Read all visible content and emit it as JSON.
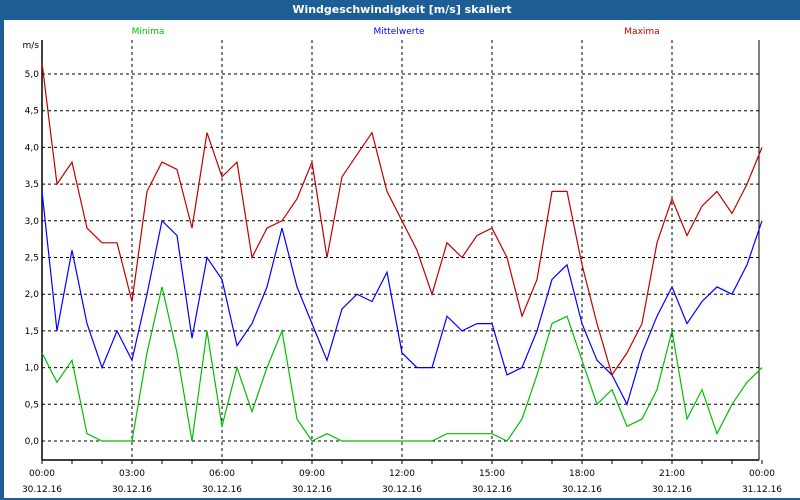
{
  "window": {
    "title": "Windgeschwindigkeit [m/s] skaliert"
  },
  "colors": {
    "minima": "#00c000",
    "mittelwerte": "#0000ff",
    "maxima": "#c00000",
    "titlebar": "#1e5e96"
  },
  "chart_data": {
    "type": "line",
    "title": "Windgeschwindigkeit [m/s] skaliert",
    "ylabel": "m/s",
    "xlabel": "",
    "ylim": [
      -0.25,
      5.45
    ],
    "xlim_hours": [
      0,
      24
    ],
    "grid": true,
    "legend_placement": "top",
    "y_ticks": [
      "0,0",
      "0,5",
      "1,0",
      "1,5",
      "2,0",
      "2,5",
      "3,0",
      "3,5",
      "4,0",
      "4,5",
      "5,0"
    ],
    "x_ticks": [
      {
        "time": "00:00",
        "date": "30.12.16"
      },
      {
        "time": "03:00",
        "date": "30.12.16"
      },
      {
        "time": "06:00",
        "date": "30.12.16"
      },
      {
        "time": "09:00",
        "date": "30.12.16"
      },
      {
        "time": "12:00",
        "date": "30.12.16"
      },
      {
        "time": "15:00",
        "date": "30.12.16"
      },
      {
        "time": "18:00",
        "date": "30.12.16"
      },
      {
        "time": "21:00",
        "date": "30.12.16"
      },
      {
        "time": "00:00",
        "date": "31.12.16"
      }
    ],
    "x_hours_step": 0.5,
    "series": [
      {
        "name": "Minima",
        "values": [
          1.2,
          0.8,
          1.1,
          0.1,
          0.0,
          0.0,
          0.0,
          1.2,
          2.1,
          1.2,
          0.0,
          1.5,
          0.2,
          1.0,
          0.4,
          1.0,
          1.5,
          0.3,
          0.0,
          0.1,
          0.0,
          0.0,
          0.0,
          0.0,
          0.0,
          0.0,
          0.0,
          0.1,
          0.1,
          0.1,
          0.1,
          0.0,
          0.3,
          0.9,
          1.6,
          1.7,
          1.1,
          0.5,
          0.7,
          0.2,
          0.3,
          0.7,
          1.5,
          0.3,
          0.7,
          0.1,
          0.5,
          0.8,
          1.0
        ]
      },
      {
        "name": "Mittelwerte",
        "values": [
          3.4,
          1.5,
          2.6,
          1.6,
          1.0,
          1.5,
          1.1,
          2.0,
          3.0,
          2.8,
          1.4,
          2.5,
          2.2,
          1.3,
          1.6,
          2.1,
          2.9,
          2.1,
          1.6,
          1.1,
          1.8,
          2.0,
          1.9,
          2.3,
          1.2,
          1.0,
          1.0,
          1.7,
          1.5,
          1.6,
          1.6,
          0.9,
          1.0,
          1.5,
          2.2,
          2.4,
          1.6,
          1.1,
          0.9,
          0.5,
          1.2,
          1.7,
          2.1,
          1.6,
          1.9,
          2.1,
          2.0,
          2.4,
          3.0
        ]
      },
      {
        "name": "Maxima",
        "values": [
          5.15,
          3.5,
          3.8,
          2.9,
          2.7,
          2.7,
          1.9,
          3.4,
          3.8,
          3.7,
          2.9,
          4.2,
          3.6,
          3.8,
          2.5,
          2.9,
          3.0,
          3.3,
          3.8,
          2.5,
          3.6,
          3.9,
          4.2,
          3.4,
          3.0,
          2.6,
          2.0,
          2.7,
          2.5,
          2.8,
          2.9,
          2.5,
          1.7,
          2.2,
          3.4,
          3.4,
          2.4,
          1.6,
          0.9,
          1.2,
          1.6,
          2.7,
          3.3,
          2.8,
          3.2,
          3.4,
          3.1,
          3.5,
          4.0
        ]
      }
    ]
  }
}
